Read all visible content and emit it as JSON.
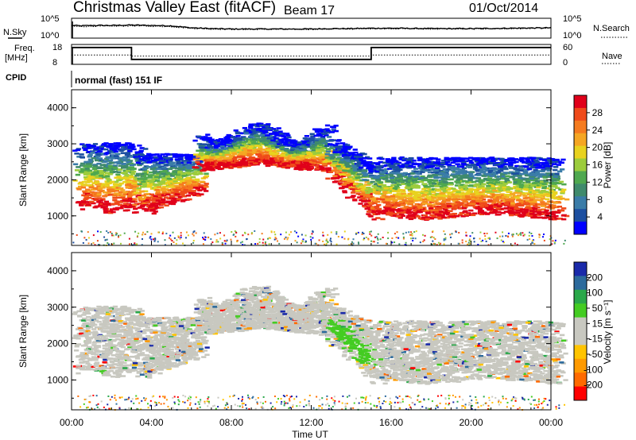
{
  "header": {
    "title": "Christmas Valley East (fitACF)",
    "beam": "Beam 17",
    "date": "01/Oct/2014"
  },
  "top_panels": {
    "nsky_label": "N.Sky",
    "nsearch_label": "N.Search",
    "nsky_ticks": [
      "10^5",
      "10^0"
    ],
    "nsearch_ticks": [
      "10^5",
      "10^0"
    ],
    "freq_label_1": "Freq.",
    "freq_label_2": "[MHz]",
    "freq_ticks": [
      "18",
      "8"
    ],
    "nave_label": "Nave",
    "nave_ticks": [
      "60",
      "0"
    ],
    "cpid_label": "CPID",
    "cpid_text": "normal (fast) 151 IF"
  },
  "colors": {
    "power_scale": [
      "#0000ff",
      "#1c4fa0",
      "#3a7ca8",
      "#3f8a6c",
      "#4fa84f",
      "#9ccc3c",
      "#e8d21f",
      "#f5a623",
      "#f57b1f",
      "#ef4a1a",
      "#e0001a"
    ],
    "velocity_scale": [
      "#ff0000",
      "#ff6a00",
      "#ff9a00",
      "#ffc400",
      "#c8c8c0",
      "#c8c8c0",
      "#44cc22",
      "#2aa84a",
      "#2c6a9c",
      "#1a2aaa"
    ]
  },
  "chart_data": [
    {
      "type": "line",
      "panel": "noise",
      "series": [
        {
          "name": "N.Sky",
          "x": [
            0.0,
            0.5,
            1,
            2,
            3,
            4,
            5,
            6,
            7,
            8,
            9,
            10,
            11,
            12,
            13,
            14,
            15,
            16,
            18,
            20,
            22,
            24
          ],
          "values": [
            3.2,
            3.1,
            3.2,
            3.2,
            3.3,
            3.2,
            3.1,
            2.6,
            2.4,
            2.3,
            2.3,
            2.3,
            2.3,
            2.3,
            2.4,
            2.4,
            2.5,
            2.5,
            2.4,
            2.4,
            2.5,
            2.6
          ]
        },
        {
          "name": "N.Search",
          "x": [
            0.0,
            0.5,
            1,
            2,
            3,
            4,
            5,
            6,
            7,
            8,
            9,
            10,
            11,
            12,
            13,
            14,
            15,
            16,
            18,
            20,
            22,
            24
          ],
          "values": [
            3.0,
            2.9,
            3.0,
            3.0,
            3.1,
            3.0,
            2.9,
            2.5,
            2.3,
            2.2,
            2.2,
            2.2,
            2.2,
            2.2,
            2.3,
            2.3,
            2.4,
            2.4,
            2.3,
            2.3,
            2.4,
            2.5
          ]
        }
      ],
      "xlim": [
        0,
        24
      ]
    },
    {
      "type": "line",
      "panel": "freq_nave",
      "series": [
        {
          "name": "Freq.",
          "x": [
            0.0,
            0.1,
            3.0,
            3.0,
            15.0,
            15.0,
            24
          ],
          "values": [
            16.5,
            16.5,
            16.5,
            10.5,
            10.5,
            16.5,
            16.5
          ]
        },
        {
          "name": "Nave",
          "x": [
            0,
            3,
            3,
            15,
            15,
            24
          ],
          "values": [
            28,
            28,
            25,
            25,
            28,
            28
          ]
        }
      ],
      "xlim": [
        0,
        24
      ]
    },
    {
      "type": "heatmap",
      "panel": "power",
      "ylabel": "Slant Range [km]",
      "yticks": [
        "4000",
        "3000",
        "2000",
        "1000"
      ],
      "ylim": [
        180,
        4500
      ],
      "xlim": [
        0,
        24
      ],
      "colorbar_label": "Power [dB]",
      "colorbar_ticks": [
        "28",
        "24",
        "20",
        "16",
        "12",
        "8",
        "4"
      ],
      "colorbar_range": [
        0,
        30
      ]
    },
    {
      "type": "heatmap",
      "panel": "velocity",
      "ylabel": "Slant Range [km]",
      "yticks": [
        "4000",
        "3000",
        "2000",
        "1000"
      ],
      "ylim": [
        180,
        4500
      ],
      "xlim": [
        0,
        24
      ],
      "xlabel": "Time UT",
      "xticks": [
        "00:00",
        "04:00",
        "08:00",
        "12:00",
        "16:00",
        "20:00",
        "00:00"
      ],
      "colorbar_label": "Velocity [m s⁻¹]",
      "colorbar_ticks": [
        "200",
        "100",
        "50",
        "15",
        "-15",
        "-50",
        "-100",
        "-200"
      ],
      "colorbar_range": [
        -250,
        250
      ]
    }
  ]
}
